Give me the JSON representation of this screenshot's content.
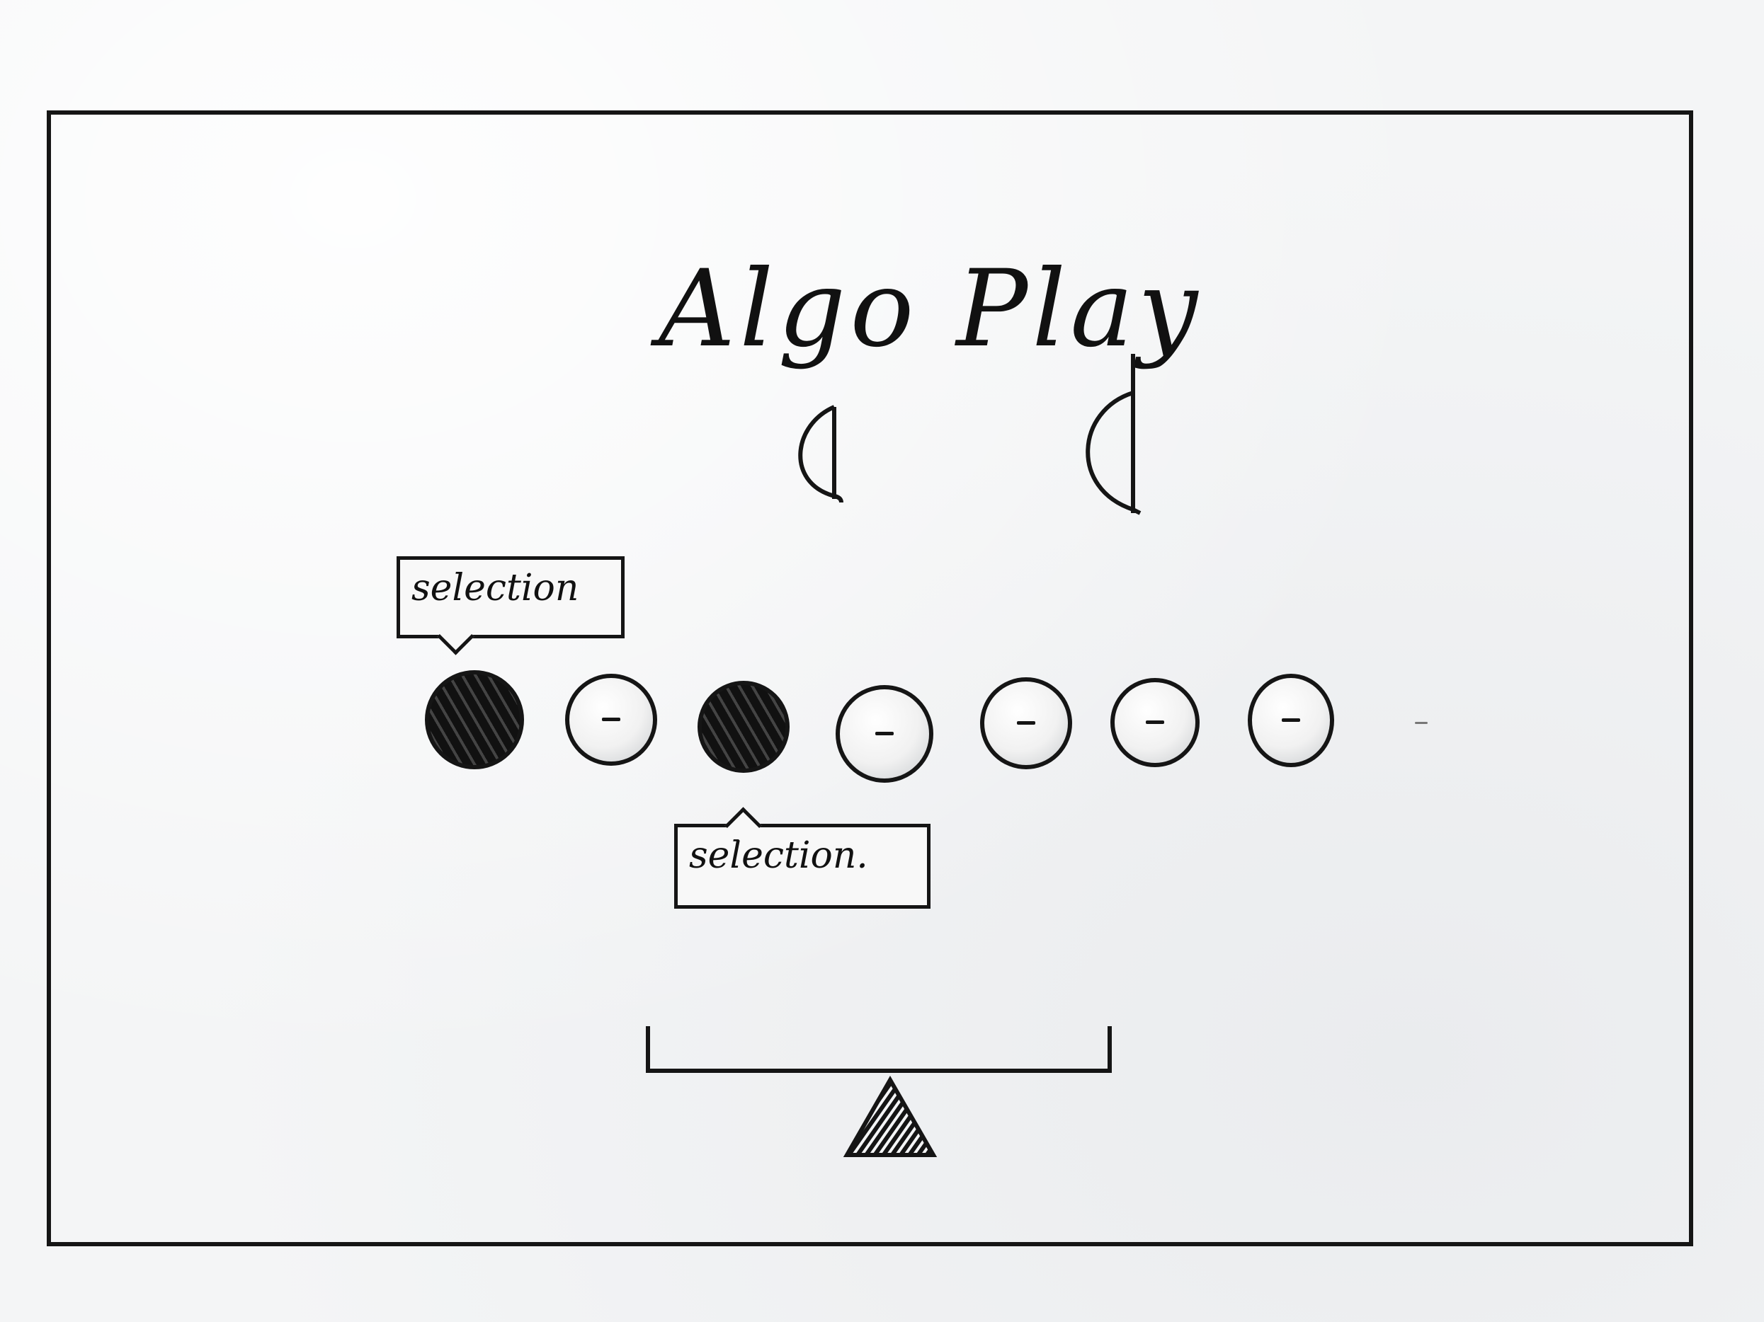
{
  "app": {
    "title": "Algo Play"
  },
  "tooltips": {
    "top_label": "selection",
    "bottom_label": "selection."
  },
  "bubbles": [
    {
      "name": "bubble-1",
      "selected": true
    },
    {
      "name": "bubble-2",
      "selected": false
    },
    {
      "name": "bubble-3",
      "selected": true
    },
    {
      "name": "bubble-4",
      "selected": false
    },
    {
      "name": "bubble-5",
      "selected": false
    },
    {
      "name": "bubble-6",
      "selected": false
    },
    {
      "name": "bubble-7",
      "selected": false
    }
  ],
  "icons": {
    "pivot": "triangle-pivot-icon",
    "unselected_marker": "dash-icon"
  }
}
